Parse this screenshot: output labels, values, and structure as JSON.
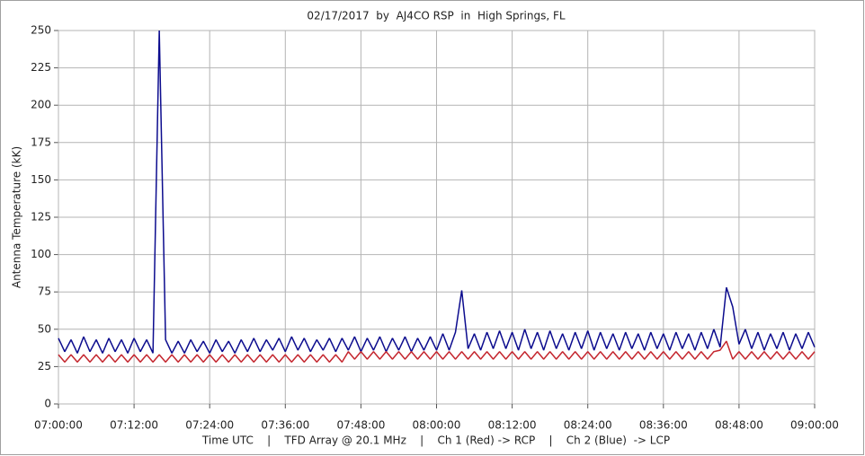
{
  "chart_data": {
    "type": "line",
    "title": "02/17/2017  by  AJ4CO RSP  in  High Springs, FL",
    "y_label": "Antenna Temperature (kK)",
    "x_label": "Time UTC    |    TFD Array @ 20.1 MHz    |    Ch 1 (Red) -> RCP    |    Ch 2 (Blue)  -> LCP",
    "x": [
      "07:00:00",
      "07:01:00",
      "07:02:00",
      "07:03:00",
      "07:04:00",
      "07:05:00",
      "07:06:00",
      "07:07:00",
      "07:08:00",
      "07:09:00",
      "07:10:00",
      "07:11:00",
      "07:12:00",
      "07:13:00",
      "07:14:00",
      "07:15:00",
      "07:16:00",
      "07:17:00",
      "07:18:00",
      "07:19:00",
      "07:20:00",
      "07:21:00",
      "07:22:00",
      "07:23:00",
      "07:24:00",
      "07:25:00",
      "07:26:00",
      "07:27:00",
      "07:28:00",
      "07:29:00",
      "07:30:00",
      "07:31:00",
      "07:32:00",
      "07:33:00",
      "07:34:00",
      "07:35:00",
      "07:36:00",
      "07:37:00",
      "07:38:00",
      "07:39:00",
      "07:40:00",
      "07:41:00",
      "07:42:00",
      "07:43:00",
      "07:44:00",
      "07:45:00",
      "07:46:00",
      "07:47:00",
      "07:48:00",
      "07:49:00",
      "07:50:00",
      "07:51:00",
      "07:52:00",
      "07:53:00",
      "07:54:00",
      "07:55:00",
      "07:56:00",
      "07:57:00",
      "07:58:00",
      "07:59:00",
      "08:00:00",
      "08:01:00",
      "08:02:00",
      "08:03:00",
      "08:04:00",
      "08:05:00",
      "08:06:00",
      "08:07:00",
      "08:08:00",
      "08:09:00",
      "08:10:00",
      "08:11:00",
      "08:12:00",
      "08:13:00",
      "08:14:00",
      "08:15:00",
      "08:16:00",
      "08:17:00",
      "08:18:00",
      "08:19:00",
      "08:20:00",
      "08:21:00",
      "08:22:00",
      "08:23:00",
      "08:24:00",
      "08:25:00",
      "08:26:00",
      "08:27:00",
      "08:28:00",
      "08:29:00",
      "08:30:00",
      "08:31:00",
      "08:32:00",
      "08:33:00",
      "08:34:00",
      "08:35:00",
      "08:36:00",
      "08:37:00",
      "08:38:00",
      "08:39:00",
      "08:40:00",
      "08:41:00",
      "08:42:00",
      "08:43:00",
      "08:44:00",
      "08:45:00",
      "08:46:00",
      "08:47:00",
      "08:48:00",
      "08:49:00",
      "08:50:00",
      "08:51:00",
      "08:52:00",
      "08:53:00",
      "08:54:00",
      "08:55:00",
      "08:56:00",
      "08:57:00",
      "08:58:00",
      "08:59:00",
      "09:00:00"
    ],
    "series": [
      {
        "color": "#0c0c8e",
        "values": [
          44,
          35,
          43,
          34,
          45,
          35,
          43,
          34,
          44,
          35,
          43,
          34,
          44,
          35,
          43,
          34,
          250,
          43,
          34,
          42,
          34,
          43,
          35,
          42,
          34,
          43,
          35,
          42,
          34,
          43,
          35,
          44,
          35,
          43,
          36,
          44,
          35,
          45,
          36,
          44,
          35,
          43,
          36,
          44,
          35,
          44,
          36,
          45,
          35,
          44,
          36,
          45,
          35,
          44,
          36,
          45,
          35,
          44,
          36,
          45,
          36,
          47,
          36,
          48,
          76,
          37,
          47,
          36,
          48,
          37,
          49,
          37,
          48,
          36,
          50,
          37,
          48,
          36,
          49,
          37,
          47,
          36,
          48,
          37,
          49,
          36,
          48,
          37,
          47,
          36,
          48,
          37,
          47,
          36,
          48,
          37,
          47,
          36,
          48,
          37,
          47,
          36,
          48,
          37,
          50,
          38,
          78,
          65,
          40,
          50,
          37,
          48,
          36,
          47,
          37,
          48,
          36,
          47,
          37,
          48,
          38
        ]
      },
      {
        "color": "#c4262e",
        "values": [
          33,
          28,
          33,
          28,
          33,
          28,
          33,
          28,
          33,
          28,
          33,
          28,
          33,
          28,
          33,
          28,
          33,
          28,
          33,
          28,
          33,
          28,
          33,
          28,
          33,
          28,
          33,
          28,
          33,
          28,
          33,
          28,
          33,
          28,
          33,
          28,
          33,
          28,
          33,
          28,
          33,
          28,
          33,
          28,
          33,
          28,
          35,
          30,
          35,
          30,
          35,
          30,
          35,
          30,
          35,
          30,
          35,
          30,
          35,
          30,
          35,
          30,
          35,
          30,
          35,
          30,
          35,
          30,
          35,
          30,
          35,
          30,
          35,
          30,
          35,
          30,
          35,
          30,
          35,
          30,
          35,
          30,
          35,
          30,
          35,
          30,
          35,
          30,
          35,
          30,
          35,
          30,
          35,
          30,
          35,
          30,
          35,
          30,
          35,
          30,
          35,
          30,
          35,
          30,
          35,
          36,
          42,
          30,
          35,
          30,
          35,
          30,
          35,
          30,
          35,
          30,
          35,
          30,
          35,
          30,
          35
        ]
      }
    ],
    "xlim": [
      "07:00:00",
      "09:00:00"
    ],
    "xticks": [
      "07:00:00",
      "07:12:00",
      "07:24:00",
      "07:36:00",
      "07:48:00",
      "08:00:00",
      "08:12:00",
      "08:24:00",
      "08:36:00",
      "08:48:00",
      "09:00:00"
    ],
    "ylim": [
      0,
      250
    ],
    "yticks": [
      0,
      25,
      50,
      75,
      100,
      125,
      150,
      175,
      200,
      225,
      250
    ],
    "grid": true
  }
}
